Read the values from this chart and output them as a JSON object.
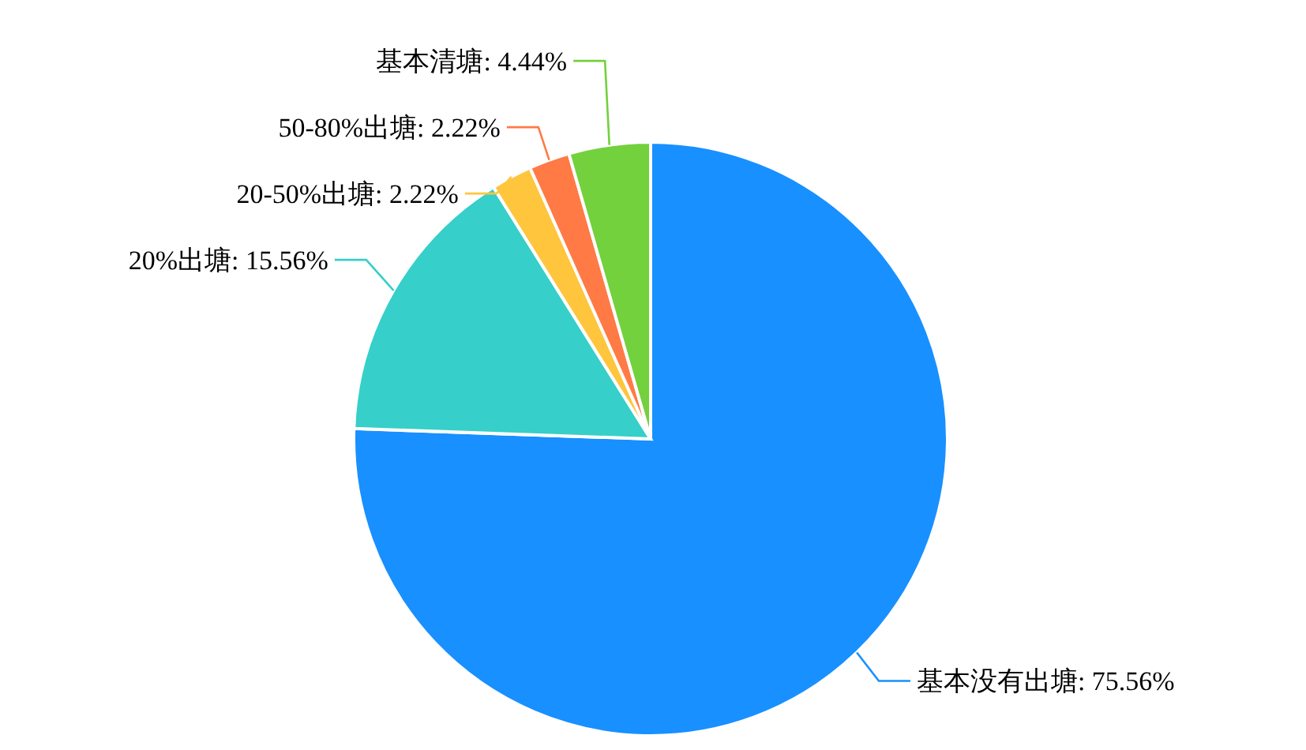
{
  "chart_data": {
    "type": "pie",
    "categories": [
      "基本没有出塘",
      "20%出塘",
      "20-50%出塘",
      "50-80%出塘",
      "基本清塘"
    ],
    "values": [
      75.56,
      15.56,
      2.22,
      2.22,
      4.44
    ],
    "colors": [
      "#1890ff",
      "#36cfc9",
      "#ffc53d",
      "#ff7a45",
      "#73d13d"
    ],
    "value_labels": [
      "75.56%",
      "15.56%",
      "2.22%",
      "2.22%",
      "4.44%"
    ]
  }
}
